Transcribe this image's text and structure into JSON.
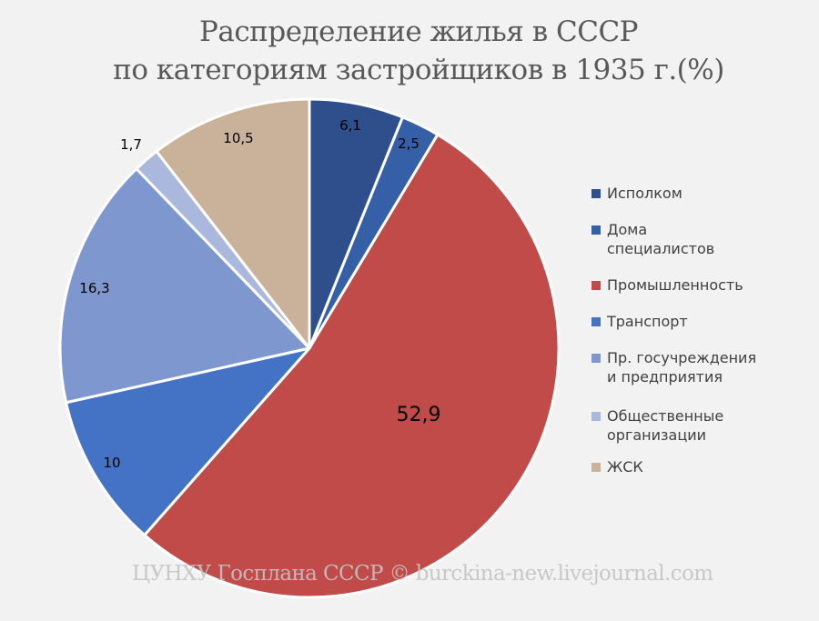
{
  "chart_data": {
    "type": "pie",
    "title": "Распределение жилья в СССР по категориям застройщиков в 1935 г.(%)",
    "categories": [
      "Исполком",
      "Дома специалистов",
      "Промышленность",
      "Транспорт",
      "Пр. госучреждения и предприятия",
      "Общественные организации",
      "ЖСК"
    ],
    "values": [
      6.1,
      2.5,
      52.9,
      10,
      16.3,
      1.7,
      10.5
    ],
    "data_labels": [
      "6,1",
      "2,5",
      "52,9",
      "10",
      "16,3",
      "1,7",
      "10,5"
    ],
    "colors": [
      "#2e4e8c",
      "#3560a8",
      "#c04b49",
      "#4472c4",
      "#7f97cf",
      "#a9b8dc",
      "#c9b19a"
    ],
    "legend_position": "right",
    "start_angle_deg": 0,
    "direction": "clockwise"
  },
  "title": {
    "line1": "Распределение жилья в СССР",
    "line2": "по категориям застройщиков в 1935 г.(%)"
  },
  "legend": {
    "items": [
      {
        "line1": "Исполком",
        "line2": "",
        "color": "#2e4e8c"
      },
      {
        "line1": "Дома",
        "line2": "специалистов",
        "color": "#3560a8"
      },
      {
        "line1": "Промышленность",
        "line2": "",
        "color": "#c04b49"
      },
      {
        "line1": "Транспорт",
        "line2": "",
        "color": "#4472c4"
      },
      {
        "line1": "Пр. госучреждения",
        "line2": "и предприятия",
        "color": "#7f97cf"
      },
      {
        "line1": "Общественные",
        "line2": "организации",
        "color": "#a9b8dc"
      },
      {
        "line1": "ЖСК",
        "line2": "",
        "color": "#c9b19a"
      }
    ]
  },
  "watermark": "ЦУНХУ Госплана СССР © burckina-new.livejournal.com"
}
